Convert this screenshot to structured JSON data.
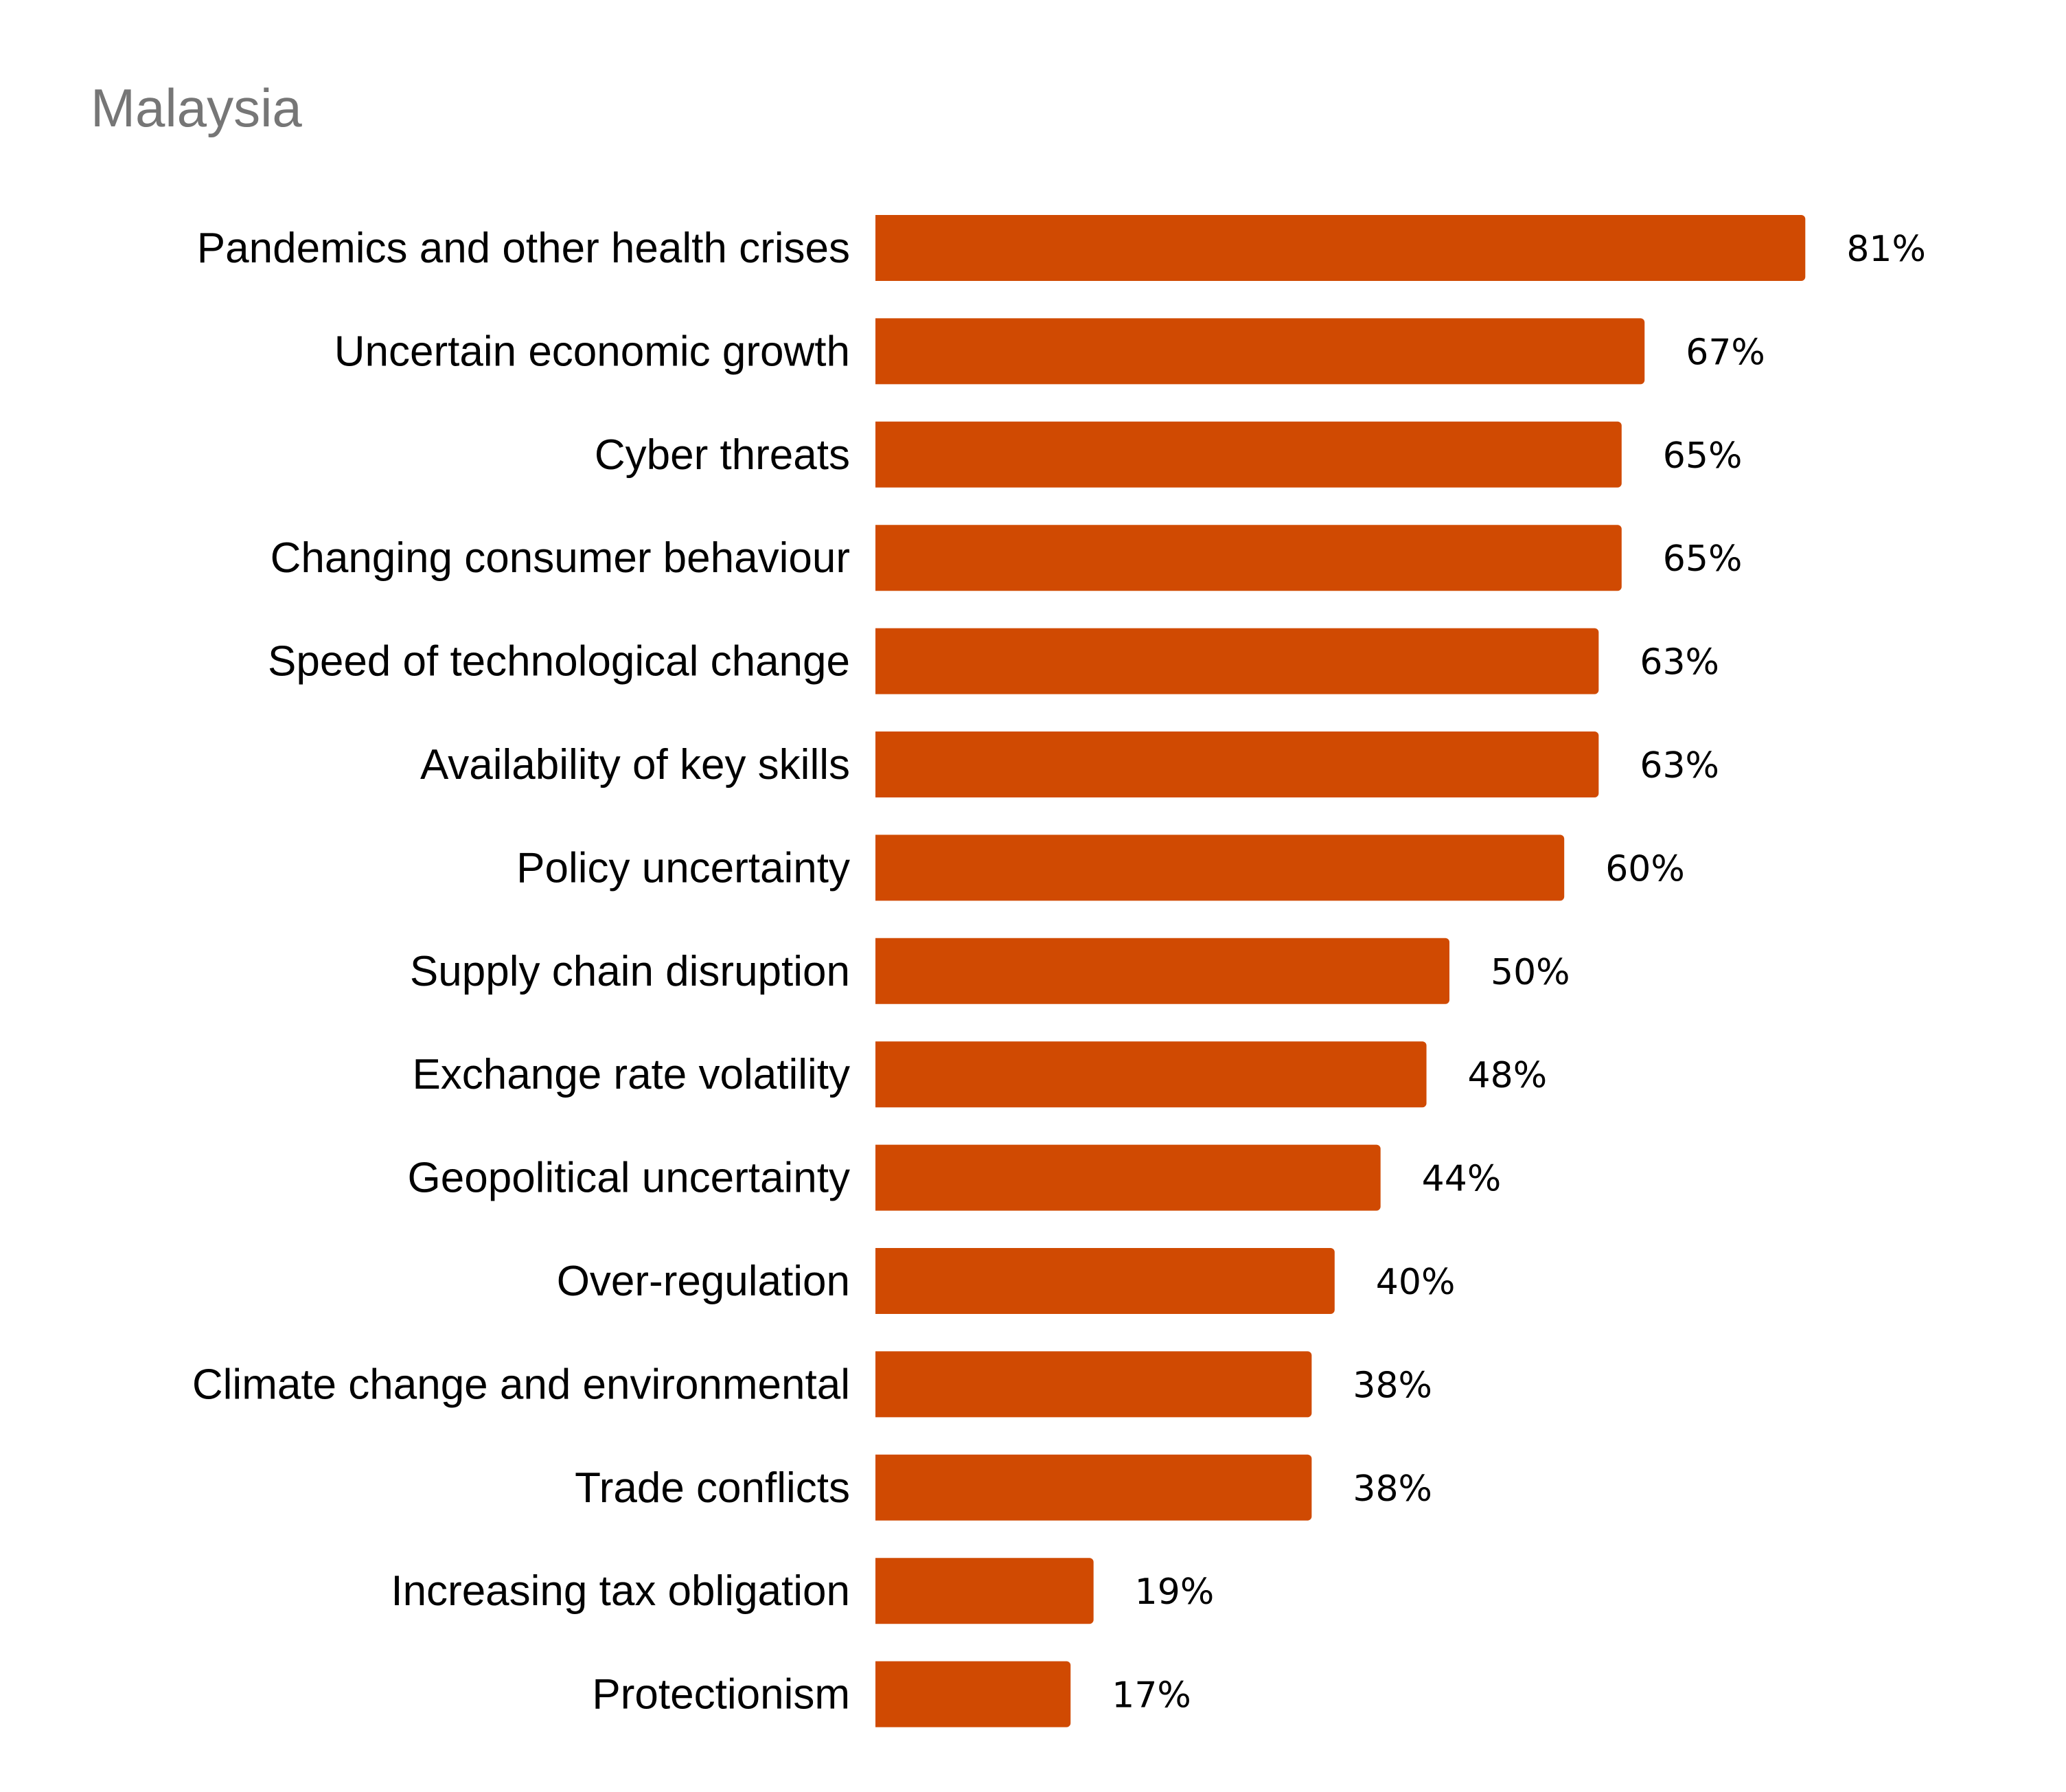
{
  "chart_data": {
    "type": "bar",
    "orientation": "horizontal",
    "title": "Malaysia",
    "categories": [
      "Pandemics and other health crises",
      "Uncertain economic growth",
      "Cyber threats",
      "Changing consumer behaviour",
      "Speed of technological change",
      "Availability of key skills",
      "Policy uncertainty",
      "Supply chain disruption",
      "Exchange rate volatility",
      "Geopolitical uncertainty",
      "Over-regulation",
      "Climate change and environmental",
      "Trade conflicts",
      "Increasing tax obligation",
      "Protectionism"
    ],
    "values": [
      81,
      67,
      65,
      65,
      63,
      63,
      60,
      50,
      48,
      44,
      40,
      38,
      38,
      19,
      17
    ],
    "value_suffix": "%",
    "xlim": [
      0,
      100
    ],
    "grid": false,
    "bar_color": "#D04A02",
    "title_color": "#767676"
  }
}
